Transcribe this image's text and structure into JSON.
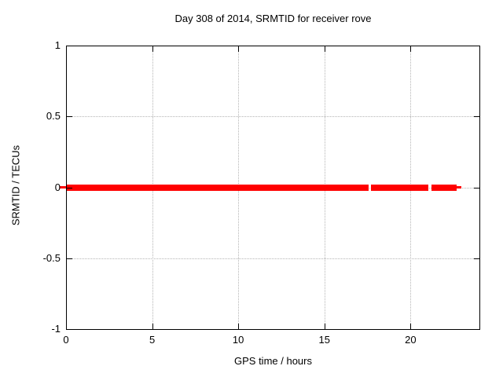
{
  "chart_data": {
    "type": "line",
    "title": "Day 308 of 2014, SRMTID for receiver rove",
    "xlabel": "GPS time / hours",
    "ylabel": "SRMTID / TECUs",
    "xlim": [
      0,
      24
    ],
    "ylim": [
      -1,
      1
    ],
    "xticks": [
      {
        "v": 0,
        "label": "0"
      },
      {
        "v": 5,
        "label": "5"
      },
      {
        "v": 10,
        "label": "10"
      },
      {
        "v": 15,
        "label": "15"
      },
      {
        "v": 20,
        "label": "20"
      }
    ],
    "yticks": [
      {
        "v": 1,
        "label": "1"
      },
      {
        "v": 0.5,
        "label": "0.5"
      },
      {
        "v": 0,
        "label": "0"
      },
      {
        "v": -0.5,
        "label": "-0.5"
      },
      {
        "v": -1,
        "label": "-1"
      }
    ],
    "grid": true,
    "legend": "none",
    "line_color": "#ff0000",
    "grid_color": "#b5b5b5",
    "border_color": "#000000",
    "series": [
      {
        "name": "SRMTID",
        "y_value": 0,
        "segments": [
          {
            "x_start": -0.36,
            "x_end": 0.0,
            "thin": true
          },
          {
            "x_start": 0.05,
            "x_end": 17.55,
            "thin": false
          },
          {
            "x_start": 17.7,
            "x_end": 21.02,
            "thin": false
          },
          {
            "x_start": 21.22,
            "x_end": 22.68,
            "thin": false
          },
          {
            "x_start": 22.68,
            "x_end": 22.93,
            "thin": true
          }
        ]
      }
    ]
  }
}
